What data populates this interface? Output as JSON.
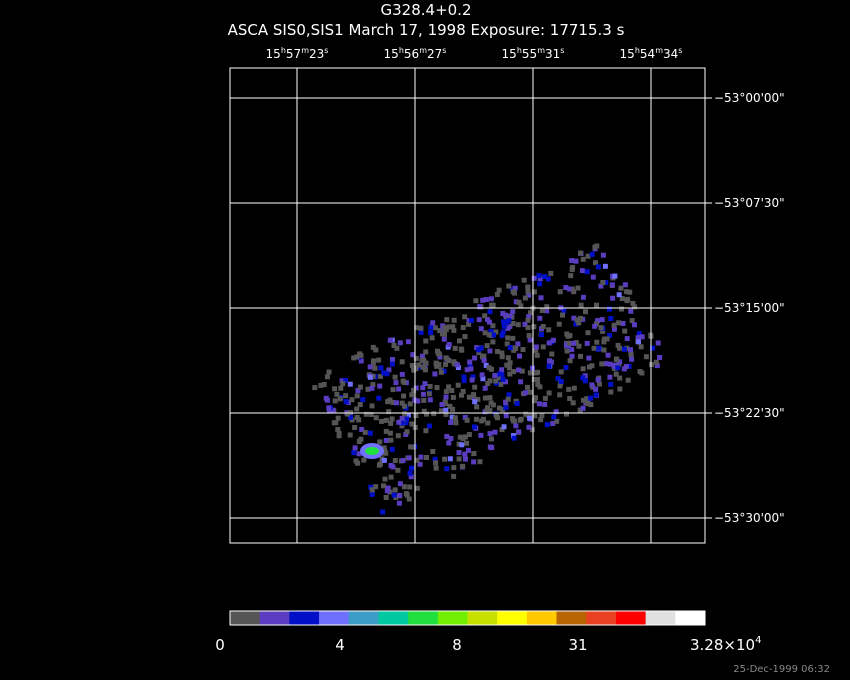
{
  "header": {
    "title": "G328.4+0.2",
    "subtitle": "ASCA SIS0,SIS1 March 17, 1998 Exposure: 17715.3 s"
  },
  "ra_labels": [
    [
      "15",
      "h",
      "57",
      "m",
      "23",
      "s"
    ],
    [
      "15",
      "h",
      "56",
      "m",
      "27",
      "s"
    ],
    [
      "15",
      "h",
      "55",
      "m",
      "31",
      "s"
    ],
    [
      "15",
      "h",
      "54",
      "m",
      "34",
      "s"
    ]
  ],
  "dec_labels": [
    "−53°00'00\"",
    "−53°07'30\"",
    "−53°15'00\"",
    "−53°22'30\"",
    "−53°30'00\""
  ],
  "colorbar": {
    "colors": [
      "#555555",
      "#5a3cc0",
      "#0010c8",
      "#7070ff",
      "#3c9cc8",
      "#00c8a0",
      "#20e040",
      "#70f000",
      "#c8e000",
      "#ffff00",
      "#ffc800",
      "#b86400",
      "#e84020",
      "#ff0000",
      "#e0e0e0",
      "#ffffff"
    ],
    "labels": [
      "0",
      "4",
      "8",
      "31"
    ],
    "max_label": [
      "3.28×10",
      "4"
    ]
  },
  "footer": "25-Dec-1999 06:32"
}
